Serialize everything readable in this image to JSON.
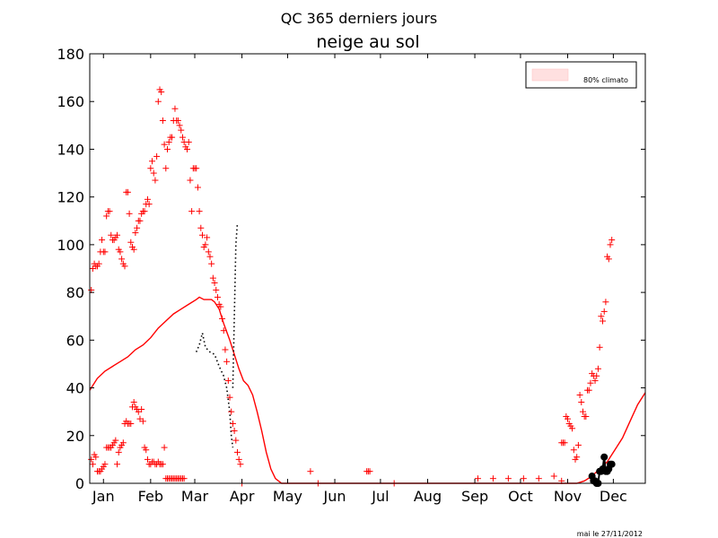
{
  "figure": {
    "suptitle": "QC 365 derniers jours",
    "footer": "mai le 27/11/2012"
  },
  "chart_data": {
    "type": "line",
    "title": "neige au sol",
    "xlabel": "",
    "ylabel": "",
    "ylim": [
      0,
      180
    ],
    "yticks": [
      0,
      20,
      40,
      60,
      80,
      100,
      120,
      140,
      160,
      180
    ],
    "xlim": [
      0,
      365
    ],
    "month_ticks": [
      {
        "label": "Jan",
        "day": 9
      },
      {
        "label": "Feb",
        "day": 40
      },
      {
        "label": "Mar",
        "day": 69
      },
      {
        "label": "Apr",
        "day": 100
      },
      {
        "label": "May",
        "day": 130
      },
      {
        "label": "Jun",
        "day": 161
      },
      {
        "label": "Jul",
        "day": 191
      },
      {
        "label": "Aug",
        "day": 222
      },
      {
        "label": "Sep",
        "day": 253
      },
      {
        "label": "Oct",
        "day": 283
      },
      {
        "label": "Nov",
        "day": 314
      },
      {
        "label": "Dec",
        "day": 344
      }
    ],
    "legend": {
      "position": "top-right",
      "entries": [
        {
          "label": "80% climato",
          "color": "#ffe0e0"
        }
      ]
    },
    "colors": {
      "normal": "#ff0000",
      "extremes": "#ff0000",
      "observed": "#000000",
      "band": "#ffe0e0"
    },
    "series": [
      {
        "style": "line",
        "points": [
          [
            0,
            39
          ],
          [
            2,
            41
          ],
          [
            5,
            44
          ],
          [
            10,
            47
          ],
          [
            15,
            49
          ],
          [
            20,
            51
          ],
          [
            25,
            53
          ],
          [
            30,
            56
          ],
          [
            35,
            58
          ],
          [
            40,
            61
          ],
          [
            45,
            65
          ],
          [
            50,
            68
          ],
          [
            55,
            71
          ],
          [
            60,
            73
          ],
          [
            65,
            75
          ],
          [
            70,
            77
          ],
          [
            72,
            78
          ],
          [
            75,
            77
          ],
          [
            80,
            77
          ],
          [
            82,
            76
          ],
          [
            85,
            73
          ],
          [
            88,
            67
          ],
          [
            92,
            60
          ],
          [
            95,
            54
          ],
          [
            98,
            48
          ],
          [
            101,
            43
          ],
          [
            104,
            41
          ],
          [
            107,
            37
          ],
          [
            110,
            30
          ],
          [
            113,
            22
          ],
          [
            116,
            13
          ],
          [
            119,
            6
          ],
          [
            122,
            2
          ],
          [
            126,
            0
          ],
          [
            320,
            0
          ],
          [
            325,
            1
          ],
          [
            330,
            3
          ],
          [
            335,
            6
          ],
          [
            340,
            9
          ],
          [
            345,
            14
          ],
          [
            350,
            19
          ],
          [
            355,
            26
          ],
          [
            360,
            33
          ],
          [
            365,
            38
          ]
        ]
      },
      {
        "style": "dotted",
        "groups": [
          [
            [
              70,
              55
            ],
            [
              72,
              58
            ],
            [
              74,
              63
            ],
            [
              76,
              57
            ],
            [
              79,
              55
            ],
            [
              82,
              54
            ],
            [
              85,
              49
            ],
            [
              88,
              45
            ],
            [
              90,
              40
            ],
            [
              92,
              30
            ],
            [
              93,
              20
            ],
            [
              94,
              15
            ]
          ],
          [
            [
              94,
              40
            ],
            [
              95,
              70
            ],
            [
              96,
              100
            ],
            [
              97,
              109
            ]
          ]
        ]
      },
      {
        "style": "plus",
        "points": [
          [
            1,
            81
          ],
          [
            2,
            90
          ],
          [
            3,
            92
          ],
          [
            4,
            91
          ],
          [
            5,
            91
          ],
          [
            6,
            92
          ],
          [
            7,
            97
          ],
          [
            8,
            102
          ],
          [
            9,
            97
          ],
          [
            10,
            97
          ],
          [
            11,
            112
          ],
          [
            12,
            114
          ],
          [
            13,
            114
          ],
          [
            14,
            104
          ],
          [
            15,
            102
          ],
          [
            16,
            102
          ],
          [
            17,
            103
          ],
          [
            18,
            104
          ],
          [
            19,
            98
          ],
          [
            20,
            97
          ],
          [
            21,
            94
          ],
          [
            22,
            92
          ],
          [
            23,
            91
          ],
          [
            24,
            122
          ],
          [
            25,
            122
          ],
          [
            26,
            113
          ],
          [
            27,
            101
          ],
          [
            28,
            99
          ],
          [
            29,
            98
          ],
          [
            30,
            105
          ],
          [
            31,
            107
          ],
          [
            32,
            110
          ],
          [
            33,
            110
          ],
          [
            34,
            113
          ],
          [
            35,
            114
          ],
          [
            36,
            114
          ],
          [
            37,
            117
          ],
          [
            38,
            119
          ],
          [
            39,
            117
          ],
          [
            40,
            132
          ],
          [
            41,
            135
          ],
          [
            42,
            130
          ],
          [
            43,
            127
          ],
          [
            44,
            137
          ],
          [
            45,
            160
          ],
          [
            46,
            165
          ],
          [
            47,
            164
          ],
          [
            48,
            152
          ],
          [
            49,
            142
          ],
          [
            50,
            132
          ],
          [
            51,
            140
          ],
          [
            52,
            143
          ],
          [
            53,
            145
          ],
          [
            54,
            145
          ],
          [
            55,
            152
          ],
          [
            56,
            157
          ],
          [
            57,
            152
          ],
          [
            58,
            152
          ],
          [
            59,
            150
          ],
          [
            60,
            148
          ],
          [
            61,
            145
          ],
          [
            62,
            143
          ],
          [
            63,
            141
          ],
          [
            64,
            140
          ],
          [
            65,
            143
          ],
          [
            66,
            127
          ],
          [
            67,
            114
          ],
          [
            68,
            132
          ],
          [
            69,
            132
          ],
          [
            70,
            132
          ],
          [
            71,
            124
          ],
          [
            72,
            114
          ],
          [
            73,
            107
          ],
          [
            74,
            104
          ],
          [
            75,
            99
          ],
          [
            76,
            100
          ],
          [
            77,
            103
          ],
          [
            78,
            97
          ],
          [
            79,
            95
          ],
          [
            80,
            92
          ],
          [
            81,
            86
          ],
          [
            82,
            84
          ],
          [
            83,
            81
          ],
          [
            84,
            78
          ],
          [
            85,
            75
          ],
          [
            86,
            74
          ],
          [
            87,
            69
          ],
          [
            88,
            64
          ],
          [
            89,
            56
          ],
          [
            90,
            51
          ],
          [
            91,
            43
          ],
          [
            92,
            36
          ],
          [
            93,
            30
          ],
          [
            94,
            25
          ],
          [
            95,
            22
          ],
          [
            96,
            18
          ],
          [
            97,
            13
          ],
          [
            98,
            10
          ],
          [
            99,
            8
          ],
          [
            145,
            5
          ],
          [
            182,
            5
          ],
          [
            183,
            5
          ],
          [
            184,
            5
          ],
          [
            310,
            17
          ],
          [
            311,
            17
          ],
          [
            312,
            17
          ],
          [
            313,
            28
          ],
          [
            314,
            27
          ],
          [
            315,
            25
          ],
          [
            316,
            24
          ],
          [
            317,
            23
          ],
          [
            318,
            14
          ],
          [
            319,
            10
          ],
          [
            320,
            11
          ],
          [
            321,
            16
          ],
          [
            322,
            37
          ],
          [
            323,
            34
          ],
          [
            324,
            30
          ],
          [
            325,
            28
          ],
          [
            326,
            28
          ],
          [
            327,
            39
          ],
          [
            328,
            39
          ],
          [
            329,
            42
          ],
          [
            330,
            46
          ],
          [
            331,
            45
          ],
          [
            332,
            43
          ],
          [
            333,
            45
          ],
          [
            334,
            48
          ],
          [
            335,
            57
          ],
          [
            336,
            70
          ],
          [
            337,
            68
          ],
          [
            338,
            72
          ],
          [
            339,
            76
          ],
          [
            340,
            95
          ],
          [
            341,
            94
          ],
          [
            342,
            100
          ],
          [
            343,
            102
          ],
          [
            1,
            10
          ],
          [
            2,
            8
          ],
          [
            3,
            12
          ],
          [
            4,
            11
          ],
          [
            5,
            5
          ],
          [
            6,
            5
          ],
          [
            7,
            5
          ],
          [
            8,
            6
          ],
          [
            9,
            7
          ],
          [
            10,
            8
          ],
          [
            11,
            15
          ],
          [
            12,
            15
          ],
          [
            13,
            15
          ],
          [
            14,
            15
          ],
          [
            15,
            16
          ],
          [
            16,
            17
          ],
          [
            17,
            18
          ],
          [
            18,
            8
          ],
          [
            19,
            13
          ],
          [
            20,
            15
          ],
          [
            21,
            16
          ],
          [
            22,
            17
          ],
          [
            23,
            25
          ],
          [
            24,
            26
          ],
          [
            25,
            25
          ],
          [
            26,
            25
          ],
          [
            27,
            25
          ],
          [
            28,
            32
          ],
          [
            29,
            34
          ],
          [
            30,
            32
          ],
          [
            31,
            31
          ],
          [
            32,
            30
          ],
          [
            33,
            27
          ],
          [
            34,
            31
          ],
          [
            35,
            26
          ],
          [
            36,
            15
          ],
          [
            37,
            14
          ],
          [
            38,
            10
          ],
          [
            39,
            8
          ],
          [
            40,
            8
          ],
          [
            41,
            9
          ],
          [
            42,
            9
          ],
          [
            43,
            8
          ],
          [
            44,
            8
          ],
          [
            45,
            9
          ],
          [
            46,
            8
          ],
          [
            47,
            8
          ],
          [
            48,
            8
          ],
          [
            49,
            15
          ],
          [
            50,
            2
          ],
          [
            51,
            2
          ],
          [
            52,
            2
          ],
          [
            53,
            2
          ],
          [
            54,
            2
          ],
          [
            55,
            2
          ],
          [
            56,
            2
          ],
          [
            57,
            2
          ],
          [
            58,
            2
          ],
          [
            59,
            2
          ],
          [
            60,
            2
          ],
          [
            61,
            2
          ],
          [
            62,
            2
          ],
          [
            100,
            0
          ],
          [
            150,
            0
          ],
          [
            200,
            0
          ],
          [
            255,
            2
          ],
          [
            265,
            2
          ],
          [
            275,
            2
          ],
          [
            285,
            2
          ],
          [
            295,
            2
          ],
          [
            305,
            3
          ],
          [
            310,
            1
          ]
        ]
      },
      {
        "style": "dots",
        "points": [
          [
            330,
            3
          ],
          [
            331,
            1
          ],
          [
            332,
            1
          ],
          [
            333,
            0
          ],
          [
            334,
            0
          ],
          [
            335,
            5
          ],
          [
            336,
            5
          ],
          [
            337,
            6
          ],
          [
            338,
            11
          ],
          [
            339,
            5
          ],
          [
            340,
            5
          ],
          [
            341,
            6
          ],
          [
            342,
            8
          ],
          [
            343,
            8
          ]
        ]
      }
    ]
  }
}
